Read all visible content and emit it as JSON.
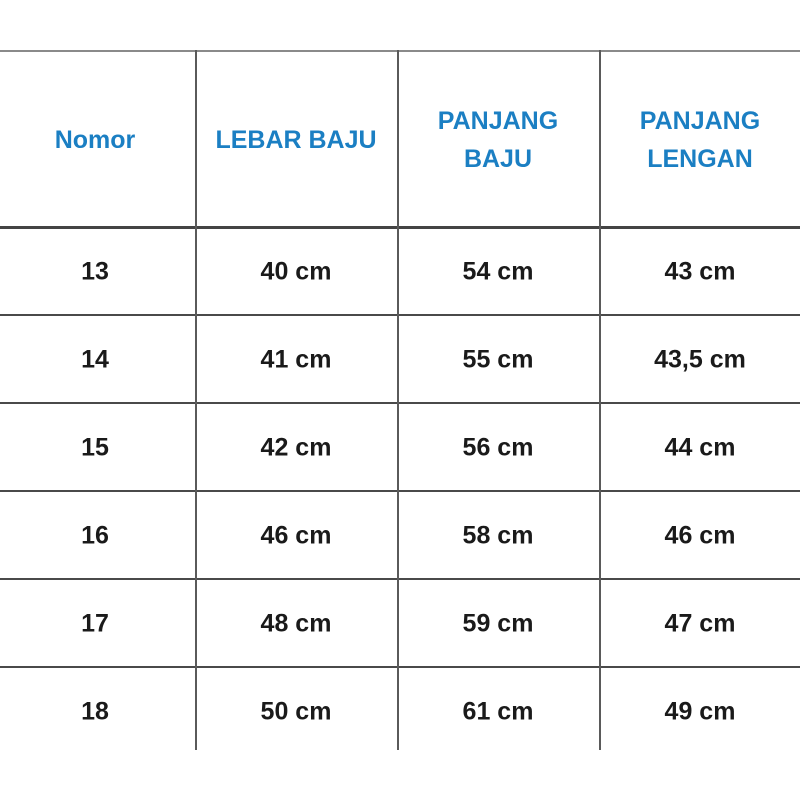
{
  "table": {
    "header_color": "#1b7fc3",
    "headers": [
      [
        "Nomor"
      ],
      [
        "LEBAR BAJU"
      ],
      [
        "PANJANG",
        "BAJU"
      ],
      [
        "PANJANG",
        "LENGAN"
      ]
    ],
    "rows": [
      [
        "13",
        "40 cm",
        "54 cm",
        "43 cm"
      ],
      [
        "14",
        "41 cm",
        "55 cm",
        "43,5 cm"
      ],
      [
        "15",
        "42 cm",
        "56 cm",
        "44 cm"
      ],
      [
        "16",
        "46 cm",
        "58 cm",
        "46 cm"
      ],
      [
        "17",
        "48 cm",
        "59 cm",
        "47 cm"
      ],
      [
        "18",
        "50 cm",
        "61 cm",
        "49 cm"
      ]
    ]
  }
}
